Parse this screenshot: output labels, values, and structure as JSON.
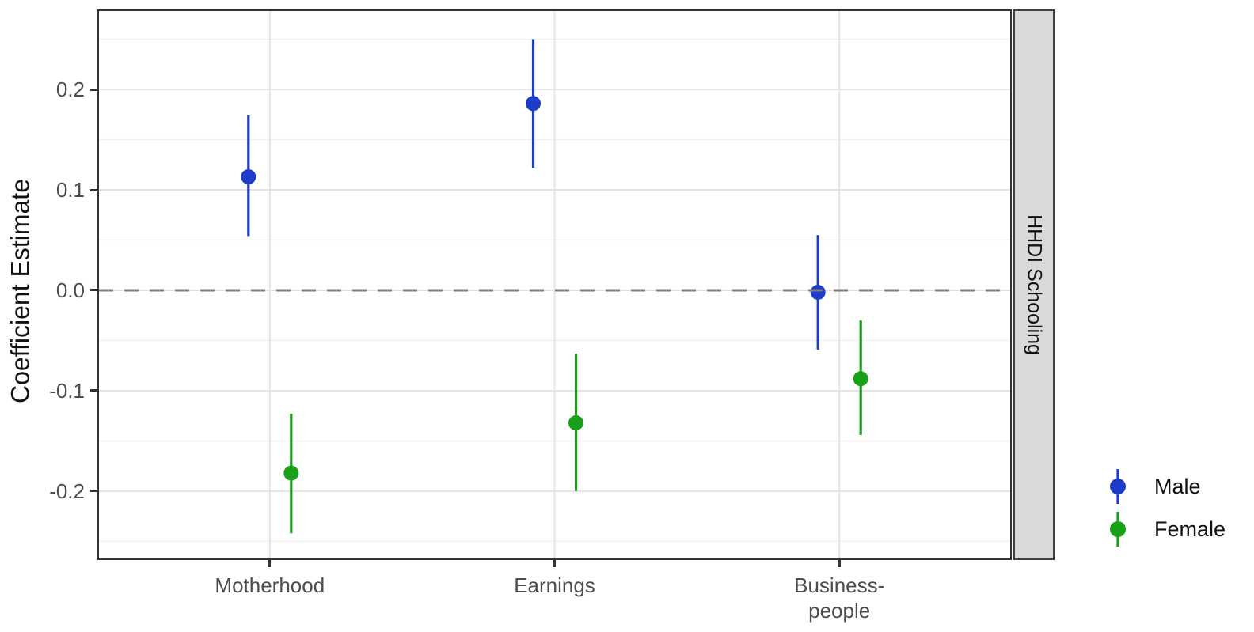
{
  "figure": {
    "background": "#ffffff"
  },
  "chart_data": {
    "type": "pointrange",
    "title": "",
    "xlabel": "",
    "ylabel": "Coefficient Estimate",
    "facet_label": "HHDI Schooling",
    "categories": [
      "Motherhood",
      "Earnings",
      "Business-\npeople"
    ],
    "series": [
      {
        "name": "Male",
        "color": "#1e3cc8",
        "points": [
          {
            "category": "Motherhood",
            "estimate": 0.113,
            "ci_low": 0.054,
            "ci_high": 0.174
          },
          {
            "category": "Earnings",
            "estimate": 0.186,
            "ci_low": 0.122,
            "ci_high": 0.25
          },
          {
            "category": "Business-people",
            "estimate": -0.002,
            "ci_low": -0.059,
            "ci_high": 0.055
          }
        ]
      },
      {
        "name": "Female",
        "color": "#18a018",
        "points": [
          {
            "category": "Motherhood",
            "estimate": -0.182,
            "ci_low": -0.242,
            "ci_high": -0.123
          },
          {
            "category": "Earnings",
            "estimate": -0.132,
            "ci_low": -0.2,
            "ci_high": -0.063
          },
          {
            "category": "Business-people",
            "estimate": -0.088,
            "ci_low": -0.144,
            "ci_high": -0.03
          }
        ]
      }
    ],
    "yticks": {
      "values": [
        0.2,
        0.1,
        0.0,
        -0.1,
        -0.2
      ],
      "labels": [
        "0.2",
        "0.1",
        "0.0",
        "-0.1",
        "-0.2"
      ]
    },
    "yminor": [
      0.25,
      0.15,
      0.05,
      -0.05,
      -0.15,
      -0.25
    ],
    "ylim": [
      -0.267,
      0.278
    ],
    "reference_line": 0.0,
    "reference_line_style": "dashed",
    "grid": true,
    "legend_position": "right",
    "colors": {
      "major_grid": "#e4e4e4",
      "minor_grid": "#f1f1f1",
      "reference_line": "#7f7f7f",
      "panel_border": "#333333",
      "strip_fill": "#d9d9d9",
      "tick_text": "#4d4d4d"
    }
  }
}
